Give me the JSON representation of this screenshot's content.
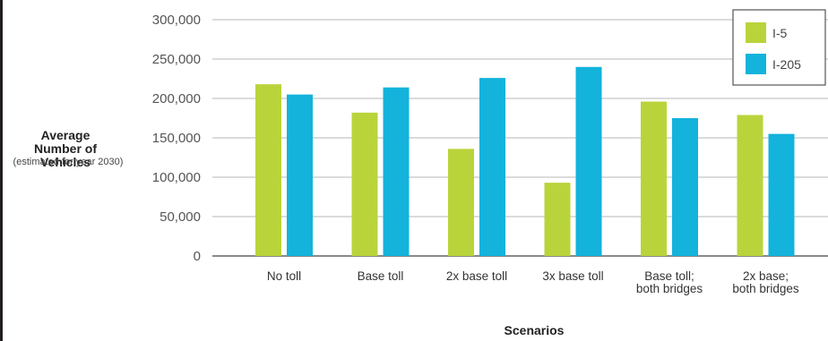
{
  "chart_data": {
    "type": "bar",
    "categories": [
      [
        "No toll"
      ],
      [
        "Base toll"
      ],
      [
        "2x base toll"
      ],
      [
        "3x base toll"
      ],
      [
        "Base toll;",
        "both bridges"
      ],
      [
        "2x base;",
        "both bridges"
      ]
    ],
    "series": [
      {
        "name": "I-5",
        "color": "#b9d43b",
        "values": [
          218000,
          182000,
          136000,
          93000,
          196000,
          179000
        ]
      },
      {
        "name": "I-205",
        "color": "#13b3dc",
        "values": [
          205000,
          214000,
          226000,
          240000,
          175000,
          155000
        ]
      }
    ],
    "ylabel_lines": [
      "Average",
      "Number of",
      "Vehicles"
    ],
    "ylabel_sub": "(estimated for year 2030)",
    "xlabel": "Scenarios",
    "ylim": [
      0,
      300000
    ],
    "yticks": [
      0,
      50000,
      100000,
      150000,
      200000,
      250000,
      300000
    ],
    "ytick_labels": [
      "0",
      "50,000",
      "100,000",
      "150,000",
      "200,000",
      "250,000",
      "300,000"
    ],
    "grid": true,
    "legend_position": "top-right"
  }
}
